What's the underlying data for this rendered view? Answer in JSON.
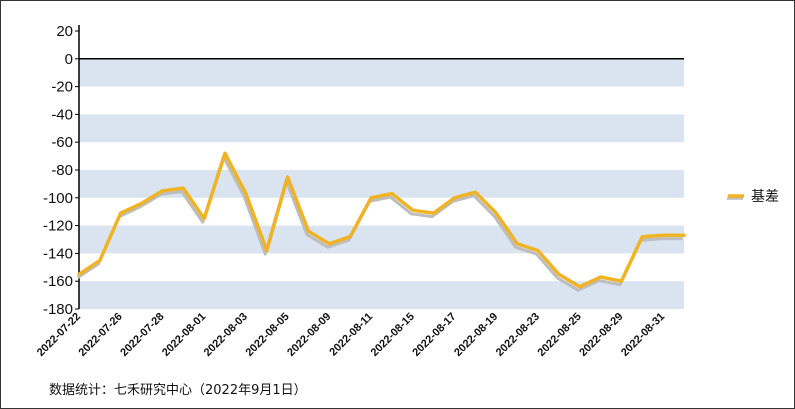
{
  "chart_data": {
    "type": "line",
    "x": [
      "2022-07-22",
      "2022-07-25",
      "2022-07-26",
      "2022-07-27",
      "2022-07-28",
      "2022-07-29",
      "2022-08-01",
      "2022-08-02",
      "2022-08-03",
      "2022-08-04",
      "2022-08-05",
      "2022-08-08",
      "2022-08-09",
      "2022-08-10",
      "2022-08-11",
      "2022-08-12",
      "2022-08-15",
      "2022-08-16",
      "2022-08-17",
      "2022-08-18",
      "2022-08-19",
      "2022-08-22",
      "2022-08-23",
      "2022-08-24",
      "2022-08-25",
      "2022-08-26",
      "2022-08-29",
      "2022-08-30",
      "2022-08-31",
      "2022-09-01"
    ],
    "x_tick_labels": [
      "2022-07-22",
      "2022-07-26",
      "2022-07-28",
      "2022-08-01",
      "2022-08-03",
      "2022-08-05",
      "2022-08-09",
      "2022-08-11",
      "2022-08-15",
      "2022-08-17",
      "2022-08-19",
      "2022-08-23",
      "2022-08-25",
      "2022-08-29",
      "2022-08-31"
    ],
    "series": [
      {
        "name": "基差",
        "color": "#f0b323",
        "values": [
          -155,
          -145,
          -111,
          -104,
          -95,
          -93,
          -115,
          -68,
          -97,
          -138,
          -85,
          -124,
          -133,
          -128,
          -100,
          -97,
          -109,
          -111,
          -100,
          -96,
          -111,
          -133,
          -138,
          -155,
          -164,
          -157,
          -160,
          -128,
          -127,
          -127
        ]
      }
    ],
    "ylim": [
      -180,
      20
    ],
    "y_ticks": [
      20,
      0,
      -20,
      -40,
      -60,
      -80,
      -100,
      -120,
      -140,
      -160,
      -180
    ],
    "grid": "alternating horizontal bands",
    "band_color": "#d9e4f0",
    "legend_position": "right"
  },
  "source_note": "数据统计：七禾研究中心（2022年9月1日）"
}
